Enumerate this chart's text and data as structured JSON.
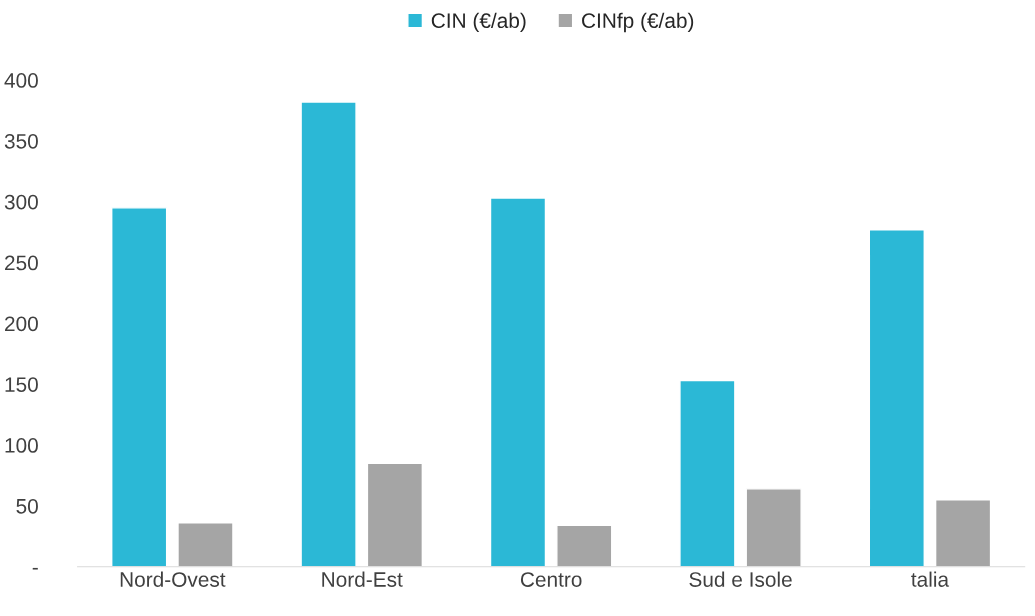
{
  "chart_data": {
    "type": "bar",
    "categories": [
      "Nord-Ovest",
      "Nord-Est",
      "Centro",
      "Sud e Isole",
      "talia"
    ],
    "series": [
      {
        "name": "CIN (€/ab)",
        "color": "#2bb8d6",
        "values": [
          295,
          382,
          303,
          153,
          277
        ]
      },
      {
        "name": "CINfp (€/ab)",
        "color": "#a5a5a5",
        "values": [
          36,
          85,
          34,
          64,
          55
        ]
      }
    ],
    "ylim": [
      0,
      400
    ],
    "yticks": [
      {
        "value": 0,
        "label": "-"
      },
      50,
      100,
      150,
      200,
      250,
      300,
      350,
      400
    ],
    "grid": false,
    "legend": "top"
  }
}
